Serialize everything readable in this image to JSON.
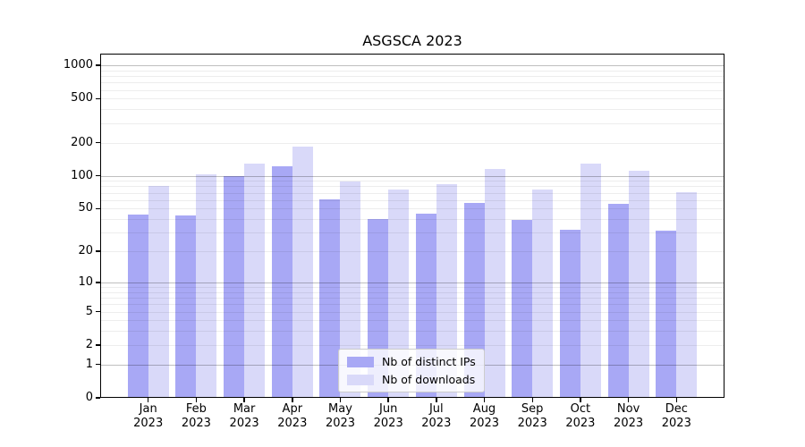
{
  "chart_data": {
    "type": "bar",
    "title": "ASGSCA 2023",
    "categories": [
      "Jan\n2023",
      "Feb\n2023",
      "Mar\n2023",
      "Apr\n2023",
      "May\n2023",
      "Jun\n2023",
      "Jul\n2023",
      "Aug\n2023",
      "Sep\n2023",
      "Oct\n2023",
      "Nov\n2023",
      "Dec\n2023"
    ],
    "series": [
      {
        "name": "Nb of distinct IPs",
        "color": "#a8a8f5",
        "values": [
          44,
          43,
          100,
          122,
          61,
          40,
          45,
          56,
          39,
          32,
          55,
          31
        ]
      },
      {
        "name": "Nb of downloads",
        "color": "#d9d9f9",
        "values": [
          81,
          103,
          130,
          185,
          88,
          75,
          84,
          115,
          75,
          129,
          112,
          71
        ]
      }
    ],
    "xlabel": "",
    "ylabel": "",
    "yscale": "log1p",
    "ylim": [
      0,
      1274
    ],
    "y_ticks": [
      1000,
      500,
      200,
      100,
      50,
      20,
      10,
      5,
      2,
      1,
      0
    ],
    "grid": {
      "orientation": "horizontal",
      "major_values": [
        1,
        10,
        100,
        1000
      ],
      "minor_values": [
        2,
        3,
        4,
        5,
        6,
        7,
        8,
        9,
        20,
        30,
        40,
        50,
        60,
        70,
        80,
        90,
        200,
        300,
        400,
        500,
        600,
        700,
        800,
        900
      ],
      "major_color": "rgba(0,0,0,0.25)",
      "minor_color": "rgba(0,0,0,0.07)"
    },
    "legend_position": "lower-center",
    "colors": {
      "background": "#ffffff",
      "axis": "#000000",
      "text": "#000000"
    }
  }
}
